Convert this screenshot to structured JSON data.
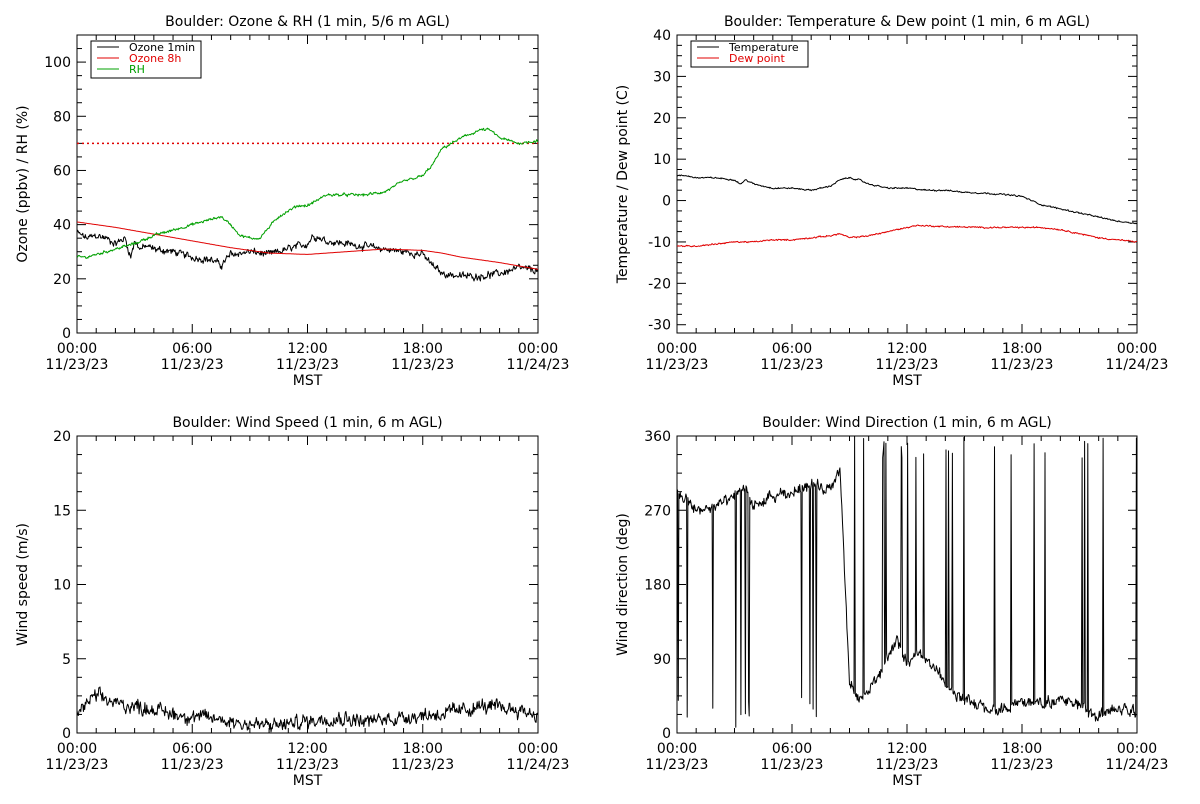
{
  "colors": {
    "black": "#000000",
    "red": "#e00000",
    "green": "#00a000"
  },
  "x_tick_labels": {
    "times": [
      "00:00",
      "06:00",
      "12:00",
      "18:00",
      "00:00"
    ],
    "dates": [
      "11/23/23",
      "11/23/23",
      "11/23/23",
      "11/23/23",
      "11/24/23"
    ]
  },
  "chart_data": [
    {
      "id": "ozone_rh",
      "type": "line",
      "title": "Boulder: Ozone & RH (1 min, 5/6 m AGL)",
      "xlabel": "MST",
      "ylabel": "Ozone (ppbv) / RH (%)",
      "xlim": [
        0,
        24
      ],
      "ylim": [
        0,
        110
      ],
      "yticks": [
        0,
        20,
        40,
        60,
        80,
        100
      ],
      "legend_position": "top-left",
      "reference_line": {
        "y": 70,
        "color": "#e00000",
        "style": "dotted"
      },
      "series": [
        {
          "name": "Ozone 1min",
          "color": "#000000",
          "noise": 1.5,
          "x": [
            0,
            0.5,
            1,
            1.5,
            2,
            2.5,
            2.8,
            3,
            3.3,
            3.6,
            4,
            5,
            6,
            7,
            7.5,
            8,
            9,
            10,
            11,
            12,
            12.3,
            13,
            14,
            15,
            16,
            17,
            18,
            18.5,
            19,
            20,
            21,
            22,
            23,
            24
          ],
          "y": [
            37,
            35,
            36,
            35,
            33,
            35,
            28,
            34,
            31,
            32,
            31,
            30,
            28,
            27,
            25,
            29,
            30,
            29,
            31,
            33,
            36,
            34,
            33,
            32,
            31,
            30,
            29,
            25,
            22,
            21,
            21,
            22,
            24,
            23
          ]
        },
        {
          "name": "Ozone 8h",
          "color": "#e00000",
          "noise": 0,
          "x": [
            0,
            2,
            4,
            6,
            8,
            10,
            12,
            14,
            16,
            18,
            19,
            20,
            22,
            24
          ],
          "y": [
            41,
            39,
            36.5,
            34,
            31.5,
            29.5,
            29,
            30,
            31,
            30.5,
            29.5,
            28,
            26,
            23.5
          ]
        },
        {
          "name": "RH",
          "color": "#00a000",
          "noise": 0.6,
          "x": [
            0,
            0.5,
            1,
            2,
            3,
            4,
            5,
            6,
            7,
            7.5,
            8,
            8.5,
            9,
            9.5,
            10,
            10.5,
            11,
            11.5,
            12,
            12.5,
            13,
            14,
            15,
            16,
            17,
            17.5,
            18,
            18.5,
            19,
            20,
            21,
            21.5,
            22,
            23,
            24
          ],
          "y": [
            28,
            28,
            29,
            31,
            33,
            36,
            38,
            40,
            42,
            43,
            40,
            36,
            35,
            35,
            39,
            43,
            45,
            47,
            47,
            49,
            51,
            51,
            51,
            52,
            56,
            57,
            58,
            62,
            68,
            72,
            75,
            75,
            72,
            70,
            71
          ]
        }
      ]
    },
    {
      "id": "temp_dew",
      "type": "line",
      "title": "Boulder: Temperature & Dew point (1 min, 6 m AGL)",
      "xlabel": "MST",
      "ylabel": "Temperature / Dew point (C)",
      "xlim": [
        0,
        24
      ],
      "ylim": [
        -32,
        40
      ],
      "yticks": [
        -30,
        -20,
        -10,
        0,
        10,
        20,
        30,
        40
      ],
      "legend_position": "top-left",
      "series": [
        {
          "name": "Temperature",
          "color": "#000000",
          "noise": 0.2,
          "x": [
            0,
            0.5,
            1,
            2,
            3,
            3.3,
            3.6,
            4,
            5,
            6,
            7,
            8,
            8.5,
            9,
            9.5,
            10,
            11,
            12,
            13,
            14,
            15,
            16,
            17,
            18,
            18.5,
            19,
            20,
            21,
            22,
            23,
            24
          ],
          "y": [
            6,
            6,
            5.5,
            5.5,
            5,
            4,
            5,
            4,
            3,
            3,
            2.5,
            3.5,
            5,
            5.5,
            5,
            4,
            3,
            3,
            2.5,
            2.5,
            2,
            1.8,
            1.5,
            1,
            0,
            -1,
            -2,
            -3,
            -4,
            -5,
            -5.5
          ]
        },
        {
          "name": "Dew point",
          "color": "#e00000",
          "noise": 0.2,
          "x": [
            0,
            1,
            2,
            3,
            4,
            5,
            6,
            7,
            8,
            8.5,
            9,
            10,
            11,
            12,
            12.5,
            14,
            16,
            18,
            19,
            20,
            21,
            22,
            23,
            24
          ],
          "y": [
            -11,
            -11,
            -10.5,
            -10,
            -10,
            -9.5,
            -9.5,
            -9,
            -8.5,
            -8,
            -9,
            -8.5,
            -7.5,
            -6.5,
            -6,
            -6.3,
            -6.5,
            -6.5,
            -6.5,
            -7,
            -8,
            -9,
            -9.5,
            -10
          ]
        }
      ]
    },
    {
      "id": "wind_speed",
      "type": "line",
      "title": "Boulder: Wind Speed (1 min, 6 m AGL)",
      "xlabel": "MST",
      "ylabel": "Wind speed (m/s)",
      "xlim": [
        0,
        24
      ],
      "ylim": [
        0,
        20
      ],
      "yticks": [
        0,
        5,
        10,
        15,
        20
      ],
      "series": [
        {
          "name": "",
          "color": "#000000",
          "noise": 0.55,
          "x": [
            0,
            0.5,
            1,
            2,
            3,
            4,
            5,
            6,
            7,
            8,
            9,
            10,
            11,
            12,
            13,
            14,
            15,
            16,
            17,
            18,
            19,
            20,
            21,
            22,
            23,
            24
          ],
          "y": [
            1.3,
            2,
            2.5,
            2,
            1.8,
            1.6,
            1.3,
            1.1,
            1,
            0.8,
            0.6,
            0.5,
            0.6,
            0.8,
            1,
            1,
            0.8,
            0.9,
            1.1,
            1.2,
            1.3,
            1.5,
            1.8,
            1.7,
            1.6,
            1.2
          ]
        }
      ]
    },
    {
      "id": "wind_dir",
      "type": "line",
      "title": "Boulder: Wind Direction (1 min, 6 m AGL)",
      "xlabel": "MST",
      "ylabel": "Wind direction (deg)",
      "xlim": [
        0,
        24
      ],
      "ylim": [
        0,
        360
      ],
      "yticks": [
        0,
        90,
        180,
        270,
        360
      ],
      "series": [
        {
          "name": "",
          "color": "#000000",
          "noise": 8,
          "x": [
            0,
            0.5,
            1,
            2,
            3,
            3.5,
            4,
            5,
            6,
            6.5,
            7,
            7.5,
            8,
            8.5,
            9,
            9.5,
            10,
            10.5,
            11,
            11.5,
            12,
            12.5,
            13,
            13.5,
            14,
            15,
            16,
            17,
            18,
            19,
            20,
            21,
            22,
            23,
            24
          ],
          "y": [
            290,
            280,
            270,
            275,
            285,
            300,
            275,
            285,
            290,
            300,
            305,
            295,
            300,
            320,
            60,
            40,
            50,
            70,
            90,
            110,
            85,
            95,
            90,
            80,
            60,
            40,
            30,
            25,
            40,
            35,
            40,
            35,
            20,
            30,
            25
          ]
        }
      ]
    }
  ]
}
